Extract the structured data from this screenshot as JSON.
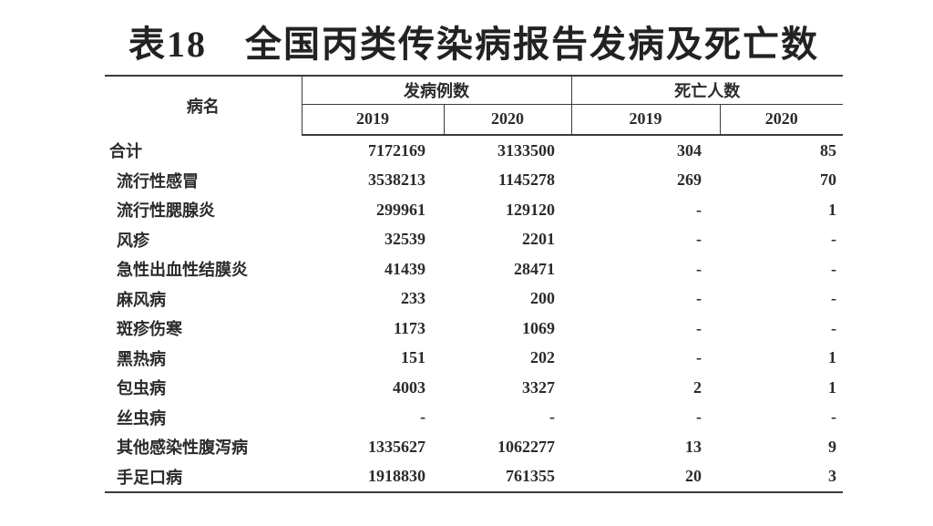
{
  "title": "表18　全国丙类传染病报告发病及死亡数",
  "table": {
    "col_disease": "病名",
    "group_cases": "发病例数",
    "group_deaths": "死亡人数",
    "years": [
      "2019",
      "2020"
    ],
    "rows": [
      {
        "name": "合计",
        "values": [
          "7172169",
          "3133500",
          "304",
          "85"
        ]
      },
      {
        "name": "流行性感冒",
        "values": [
          "3538213",
          "1145278",
          "269",
          "70"
        ]
      },
      {
        "name": "流行性腮腺炎",
        "values": [
          "299961",
          "129120",
          "-",
          "1"
        ]
      },
      {
        "name": "风疹",
        "values": [
          "32539",
          "2201",
          "-",
          "-"
        ]
      },
      {
        "name": "急性出血性结膜炎",
        "values": [
          "41439",
          "28471",
          "-",
          "-"
        ]
      },
      {
        "name": "麻风病",
        "values": [
          "233",
          "200",
          "-",
          "-"
        ]
      },
      {
        "name": "斑疹伤寒",
        "values": [
          "1173",
          "1069",
          "-",
          "-"
        ]
      },
      {
        "name": "黑热病",
        "values": [
          "151",
          "202",
          "-",
          "1"
        ]
      },
      {
        "name": "包虫病",
        "values": [
          "4003",
          "3327",
          "2",
          "1"
        ]
      },
      {
        "name": "丝虫病",
        "values": [
          "-",
          "-",
          "-",
          "-"
        ]
      },
      {
        "name": "其他感染性腹泻病",
        "values": [
          "1335627",
          "1062277",
          "13",
          "9"
        ]
      },
      {
        "name": "手足口病",
        "values": [
          "1918830",
          "761355",
          "20",
          "3"
        ]
      }
    ]
  }
}
